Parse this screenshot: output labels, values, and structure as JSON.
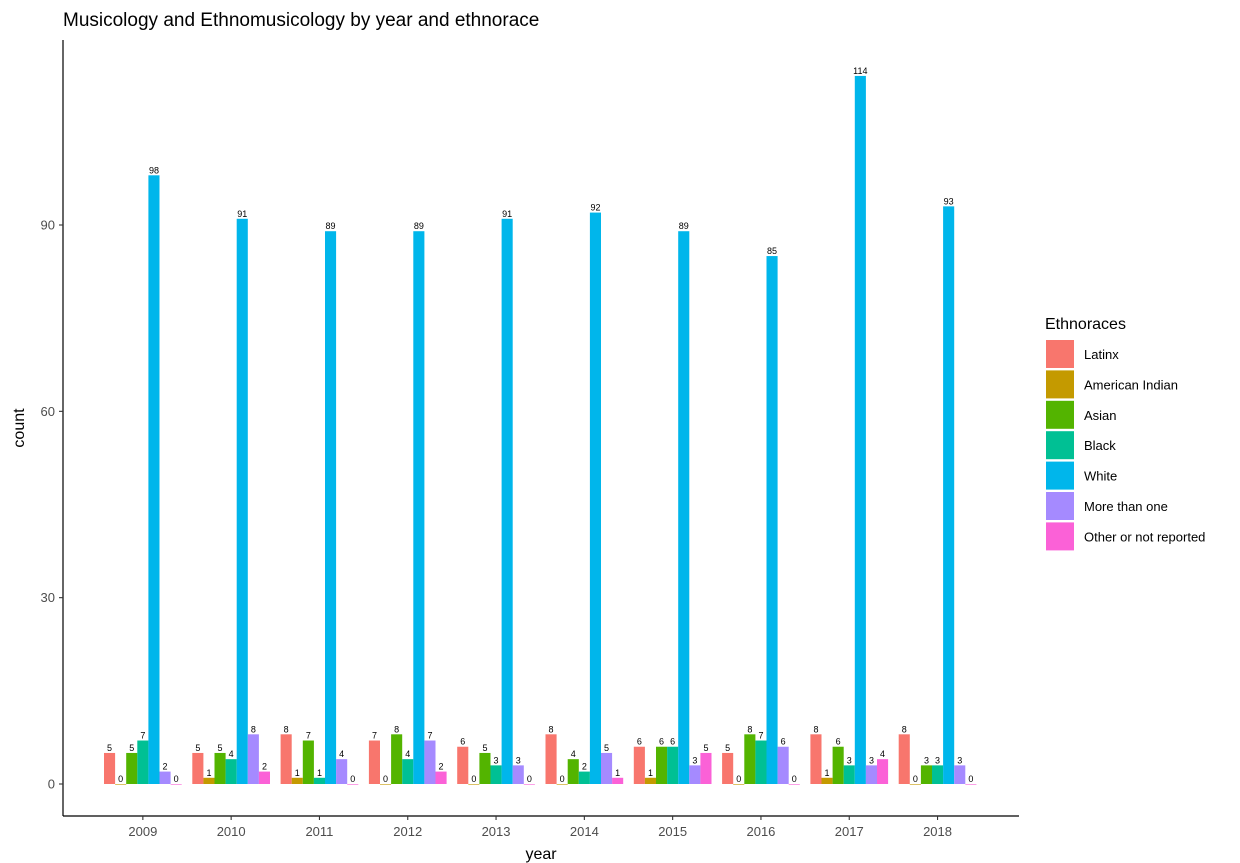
{
  "chart_data": {
    "type": "bar",
    "title": "Musicology and Ethnomusicology by year and ethnorace",
    "xlabel": "year",
    "ylabel": "count",
    "ylim": [
      0,
      120
    ],
    "yticks": [
      0,
      30,
      60,
      90
    ],
    "categories": [
      "2009",
      "2010",
      "2011",
      "2012",
      "2013",
      "2014",
      "2015",
      "2016",
      "2017",
      "2018"
    ],
    "legend_title": "Ethnoraces",
    "legend_position": "right",
    "grid": false,
    "series": [
      {
        "name": "Latinx",
        "color": "#F8766D",
        "values": [
          5,
          5,
          8,
          7,
          6,
          8,
          6,
          5,
          8,
          8
        ]
      },
      {
        "name": "American Indian",
        "color": "#C49A00",
        "values": [
          0,
          1,
          1,
          0,
          0,
          0,
          1,
          0,
          1,
          0
        ]
      },
      {
        "name": "Asian",
        "color": "#53B400",
        "values": [
          5,
          5,
          7,
          8,
          5,
          4,
          6,
          8,
          6,
          3
        ]
      },
      {
        "name": "Black",
        "color": "#00C094",
        "values": [
          7,
          4,
          1,
          4,
          3,
          2,
          6,
          7,
          3,
          3
        ]
      },
      {
        "name": "White",
        "color": "#00B6EB",
        "values": [
          98,
          91,
          89,
          89,
          91,
          92,
          89,
          85,
          114,
          93
        ]
      },
      {
        "name": "More than one",
        "color": "#A58AFF",
        "values": [
          2,
          8,
          4,
          7,
          3,
          5,
          3,
          6,
          3,
          3
        ]
      },
      {
        "name": "Other or not reported",
        "color": "#FB61D7",
        "values": [
          0,
          2,
          0,
          2,
          0,
          1,
          5,
          0,
          4,
          0
        ]
      }
    ]
  }
}
